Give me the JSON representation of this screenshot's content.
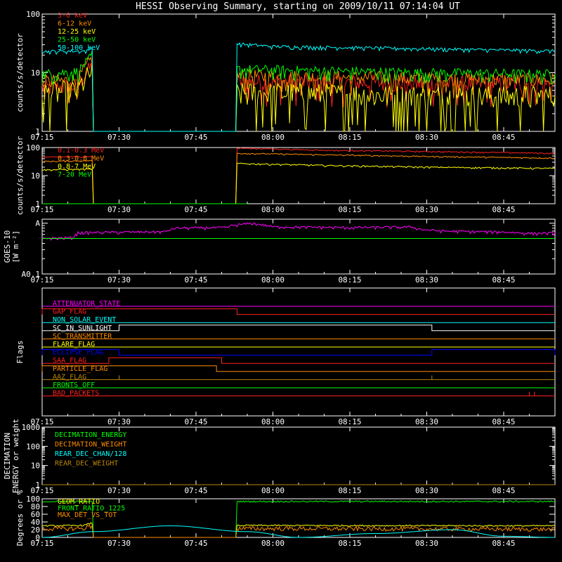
{
  "title": "HESSI Observing Summary, starting on 2009/10/11 07:14:04 UT",
  "chart_data": [
    {
      "id": "lo",
      "type": "line",
      "ylabel": "counts/s/detector",
      "yscale": "log",
      "ylim": [
        1,
        100
      ],
      "yticks": [
        "1",
        "10",
        "100"
      ],
      "xticks": [
        "07:15",
        "07:30",
        "07:45",
        "08:00",
        "08:15",
        "08:30",
        "08:45"
      ],
      "legend": [
        {
          "label": "3-6 keV",
          "color": "#ff2020"
        },
        {
          "label": "6-12 keV",
          "color": "#ff8c00"
        },
        {
          "label": "12-25 keV",
          "color": "#ffff00"
        },
        {
          "label": "25-50 keV",
          "color": "#00ff00"
        },
        {
          "label": "50-100 keV",
          "color": "#00ffff"
        }
      ],
      "series": [
        {
          "name": "3-6 keV",
          "color": "#ff2020",
          "noise": 0.35,
          "x": [
            "07:15",
            "07:22",
            "07:24",
            "07:25",
            "07:25",
            "07:53",
            "07:53",
            "08:05",
            "08:30",
            "08:55"
          ],
          "y": [
            5.5,
            6,
            11,
            14,
            1,
            1,
            7,
            7,
            6.5,
            6.5
          ]
        },
        {
          "name": "6-12 keV",
          "color": "#ff8c00",
          "noise": 0.3,
          "x": [
            "07:15",
            "07:22",
            "07:24",
            "07:25",
            "07:25",
            "07:53",
            "07:53",
            "08:05",
            "08:30",
            "08:55"
          ],
          "y": [
            7,
            7.5,
            14,
            19,
            1,
            1,
            9,
            8.5,
            8,
            7.5
          ]
        },
        {
          "name": "12-25 keV",
          "color": "#ffff00",
          "noise": 0.5,
          "x": [
            "07:15",
            "07:22",
            "07:24",
            "07:25",
            "07:25",
            "07:53",
            "07:53",
            "08:05",
            "08:30",
            "08:55"
          ],
          "y": [
            4.5,
            5,
            9,
            11,
            1,
            1,
            4.5,
            4.5,
            4,
            4
          ]
        },
        {
          "name": "25-50 keV",
          "color": "#00ff00",
          "noise": 0.2,
          "x": [
            "07:15",
            "07:22",
            "07:24",
            "07:25",
            "07:25",
            "07:53",
            "07:53",
            "08:05",
            "08:30",
            "08:55"
          ],
          "y": [
            9.5,
            10.5,
            16,
            22,
            1,
            1,
            11.5,
            11,
            10,
            9.5
          ]
        },
        {
          "name": "50-100 keV",
          "color": "#00ffff",
          "noise": 0.06,
          "x": [
            "07:15",
            "07:24",
            "07:25",
            "07:25",
            "07:53",
            "07:53",
            "08:00",
            "08:30",
            "08:55"
          ],
          "y": [
            23,
            23.5,
            30,
            1,
            1,
            31,
            28,
            25.5,
            23.5
          ]
        }
      ]
    },
    {
      "id": "hi",
      "type": "line",
      "ylabel": "counts/s/detector",
      "yscale": "log",
      "ylim": [
        1,
        100
      ],
      "yticks": [
        "1",
        "10",
        "100"
      ],
      "xticks": [
        "07:15",
        "07:30",
        "07:45",
        "08:00",
        "08:15",
        "08:30",
        "08:45"
      ],
      "legend": [
        {
          "label": "0.1-0.3 MeV",
          "color": "#ff2020"
        },
        {
          "label": "0.3-0.8 MeV",
          "color": "#ff8c00"
        },
        {
          "label": "0.8-7 MeV",
          "color": "#ffff00"
        },
        {
          "label": "7-20 MeV",
          "color": "#00ff00"
        }
      ],
      "series": [
        {
          "name": "0.1-0.3 MeV",
          "color": "#ff2020",
          "noise": 0.04,
          "x": [
            "07:15",
            "07:25",
            "07:25",
            "07:53",
            "07:53",
            "08:10",
            "08:30",
            "08:55"
          ],
          "y": [
            45,
            48,
            1,
            1,
            95,
            80,
            72,
            62
          ]
        },
        {
          "name": "0.3-0.8 MeV",
          "color": "#ff8c00",
          "noise": 0.04,
          "x": [
            "07:15",
            "07:25",
            "07:25",
            "07:53",
            "07:53",
            "08:10",
            "08:30",
            "08:55"
          ],
          "y": [
            32,
            34,
            1,
            1,
            62,
            55,
            48,
            42
          ]
        },
        {
          "name": "0.8-7 MeV",
          "color": "#ffff00",
          "noise": 0.05,
          "x": [
            "07:15",
            "07:25",
            "07:25",
            "07:53",
            "07:53",
            "08:10",
            "08:30",
            "08:55"
          ],
          "y": [
            16,
            17,
            1,
            1,
            27,
            23,
            20,
            18
          ]
        },
        {
          "name": "7-20 MeV",
          "color": "#00ff00",
          "noise": 0,
          "x": [
            "07:15",
            "07:55"
          ],
          "y": [
            1,
            1
          ]
        }
      ]
    },
    {
      "id": "goes",
      "type": "line",
      "ylabel": "GOES-10",
      "ylabel2": "[W m⁻²]",
      "yscale": "log",
      "ylim": [
        0.1,
        1.2
      ],
      "yticks": [
        "A0.1",
        "A"
      ],
      "ytick_values": [
        0.1,
        1
      ],
      "xticks": [
        "07:15",
        "07:30",
        "07:45",
        "08:00",
        "08:15",
        "08:30",
        "08:45"
      ],
      "series": [
        {
          "name": "",
          "color": "#ff00ff",
          "noise": 0.05,
          "x": [
            "07:15",
            "07:21",
            "07:22",
            "07:39",
            "07:41",
            "07:51",
            "07:52",
            "07:56",
            "08:00",
            "08:15",
            "08:27",
            "08:29",
            "08:33",
            "08:45",
            "08:50",
            "08:55"
          ],
          "y": [
            0.5,
            0.52,
            0.65,
            0.68,
            0.8,
            0.82,
            0.9,
            1.0,
            0.85,
            0.82,
            0.84,
            0.75,
            0.7,
            0.67,
            0.63,
            0.64
          ]
        },
        {
          "name": "",
          "color": "#00ff00",
          "noise": 0,
          "x": [
            "07:15",
            "08:55"
          ],
          "y": [
            0.5,
            0.5
          ]
        }
      ]
    },
    {
      "id": "flags",
      "type": "line",
      "ylabel": "Flags",
      "xticks": [
        "07:15",
        "07:30",
        "07:45",
        "08:00",
        "08:15",
        "08:30",
        "08:45"
      ],
      "flags": [
        {
          "label": "ATTENUATOR_STATE",
          "color": "#ff00ff",
          "segments": []
        },
        {
          "label": "GAP_FLAG",
          "color": "#ff2020",
          "segments": [
            [
              "07:15",
              "07:53"
            ]
          ]
        },
        {
          "label": "NON_SOLAR_EVENT",
          "color": "#00ffff",
          "segments": []
        },
        {
          "label": "SC_IN_SUNLIGHT",
          "color": "#ffffff",
          "segments": [
            [
              "07:30",
              "08:31"
            ]
          ]
        },
        {
          "label": "SC_TRANSMITTER",
          "color": "#ff8c00",
          "segments": []
        },
        {
          "label": "FLARE_FLAG",
          "color": "#ffff00",
          "segments": []
        },
        {
          "label": "ECLIPSE_FLAG",
          "color": "#0000ff",
          "segments": [
            [
              "07:15",
              "07:30"
            ],
            [
              "08:31",
              "08:55"
            ]
          ]
        },
        {
          "label": "SAA_FLAG",
          "color": "#ff2020",
          "segments": [
            [
              "07:28",
              "07:50"
            ]
          ]
        },
        {
          "label": "PARTICLE_FLAG",
          "color": "#ff8c00",
          "segments": [
            [
              "07:15",
              "07:49"
            ]
          ]
        },
        {
          "label": "AAZ_FLAG",
          "color": "#b8860b",
          "spikes": [
            "07:30",
            "08:31"
          ],
          "segments": []
        },
        {
          "label": "FRONTS_OFF",
          "color": "#00ff00",
          "segments": []
        },
        {
          "label": "BAD_PACKETS",
          "color": "#ff2020",
          "spikes": [
            "08:50",
            "08:51"
          ],
          "segments": []
        }
      ]
    },
    {
      "id": "dec",
      "type": "line",
      "ylabel": "DECIMATION",
      "ylabel2": "ENERGY or weight",
      "yscale": "log",
      "ylim": [
        1,
        1000
      ],
      "yticks": [
        "1",
        "10",
        "100",
        "1000"
      ],
      "xticks": [
        "07:15",
        "07:30",
        "07:45",
        "08:00",
        "08:15",
        "08:30",
        "08:45"
      ],
      "legend": [
        {
          "label": "DECIMATION_ENERGY",
          "color": "#00ff00"
        },
        {
          "label": "DECIMATION_WEIGHT",
          "color": "#ff8c00"
        },
        {
          "label": "REAR_DEC_CHAN/128",
          "color": "#00ffff"
        },
        {
          "label": "REAR_DEC_WEIGHT",
          "color": "#b8860b"
        }
      ],
      "series": [
        {
          "name": "REAR_DEC_WEIGHT",
          "color": "#b8860b",
          "noise": 0,
          "x": [
            "07:15",
            "08:55"
          ],
          "y": [
            1,
            1
          ]
        }
      ]
    },
    {
      "id": "deg",
      "type": "line",
      "ylabel": "Degrees or %",
      "ylim": [
        0,
        100
      ],
      "yticks": [
        "0",
        "20",
        "40",
        "60",
        "80",
        "100"
      ],
      "xticks": [
        "07:15",
        "07:30",
        "07:45",
        "08:00",
        "08:15",
        "08:30",
        "08:45"
      ],
      "legend": [
        {
          "label": "GEOM_RATIO",
          "color": "#ffff00"
        },
        {
          "label": "FRONT_RATIO_1225",
          "color": "#00ff00"
        },
        {
          "label": "MAX_DET_VS_TOT",
          "color": "#ff8c00"
        }
      ],
      "series": [
        {
          "name": "GEOM_RATIO",
          "color": "#ffff00",
          "noise": 0.06,
          "x": [
            "07:15",
            "07:23",
            "07:25",
            "07:25",
            "07:53",
            "07:53",
            "08:55"
          ],
          "y": [
            30,
            31,
            38,
            0,
            0,
            31,
            30
          ]
        },
        {
          "name": "FRONT_RATIO_1225",
          "color": "#00ff00",
          "noise": 0.02,
          "x": [
            "07:15",
            "07:25",
            "07:25",
            "07:53",
            "07:53",
            "08:55"
          ],
          "y": [
            93,
            93,
            0,
            0,
            93,
            93
          ]
        },
        {
          "name": "MAX_DET_VS_TOT",
          "color": "#ff8c00",
          "noise": 0.25,
          "x": [
            "07:15",
            "07:23",
            "07:25",
            "07:25",
            "07:53",
            "07:53",
            "08:55"
          ],
          "y": [
            22,
            23,
            32,
            0,
            0,
            23,
            21
          ]
        },
        {
          "name": "",
          "color": "#00ffff",
          "noise": 0,
          "curve": "sine",
          "x": [
            "07:15",
            "07:25",
            "07:40",
            "07:55",
            "08:05",
            "08:20",
            "08:35",
            "08:45",
            "08:55"
          ],
          "y": [
            0,
            15,
            30,
            15,
            0,
            10,
            20,
            3,
            0
          ]
        }
      ]
    }
  ]
}
